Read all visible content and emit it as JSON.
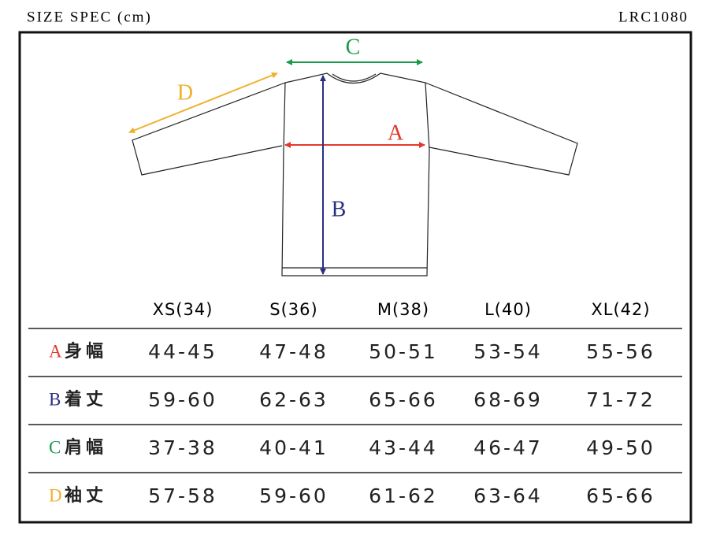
{
  "header": {
    "title": "SIZE SPEC (cm)",
    "code": "LRC1080"
  },
  "table": {
    "columns": [
      "XS(34)",
      "S(36)",
      "M(38)",
      "L(40)",
      "XL(42)"
    ],
    "rows": [
      {
        "key": "A",
        "name": "身幅",
        "color": "#e2392e",
        "values": [
          "44-45",
          "47-48",
          "50-51",
          "53-54",
          "55-56"
        ]
      },
      {
        "key": "B",
        "name": "着丈",
        "color": "#2a2f82",
        "values": [
          "59-60",
          "62-63",
          "65-66",
          "68-69",
          "71-72"
        ]
      },
      {
        "key": "C",
        "name": "肩幅",
        "color": "#1b9a4b",
        "values": [
          "37-38",
          "40-41",
          "43-44",
          "46-47",
          "49-50"
        ]
      },
      {
        "key": "D",
        "name": "袖丈",
        "color": "#efb12b",
        "values": [
          "57-58",
          "59-60",
          "61-62",
          "63-64",
          "65-66"
        ]
      }
    ]
  }
}
